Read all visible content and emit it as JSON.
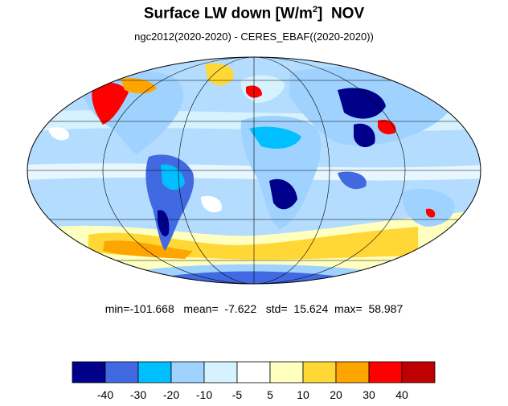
{
  "title": {
    "main": "Surface LW down [W/m",
    "superscript": "2",
    "close": "]",
    "month": "NOV"
  },
  "subtitle": "ngc2012(2020-2020) - CERES_EBAF((2020-2020))",
  "stats": {
    "min_label": "min=",
    "min": "-101.668",
    "mean_label": "mean=",
    "mean": "-7.622",
    "std_label": "std=",
    "std": "15.624",
    "max_label": "max=",
    "max": "58.987"
  },
  "colorbar": {
    "levels": [
      -40,
      -30,
      -20,
      -10,
      -5,
      5,
      10,
      20,
      30,
      40
    ],
    "tick_labels": [
      "-40",
      "-30",
      "-20",
      "-10",
      "-5",
      "5",
      "10",
      "20",
      "30",
      "40"
    ],
    "colors": [
      "#00008b",
      "#4169e1",
      "#00bfff",
      "#9fd2ff",
      "#d6f2ff",
      "#ffffff",
      "#ffffc0",
      "#ffd835",
      "#ffa500",
      "#ff0000",
      "#c00000"
    ]
  },
  "map": {
    "projection": "Mollweide",
    "ocean_base_color": "#b3dcff",
    "coastline_color": "#000000",
    "graticule": true
  }
}
